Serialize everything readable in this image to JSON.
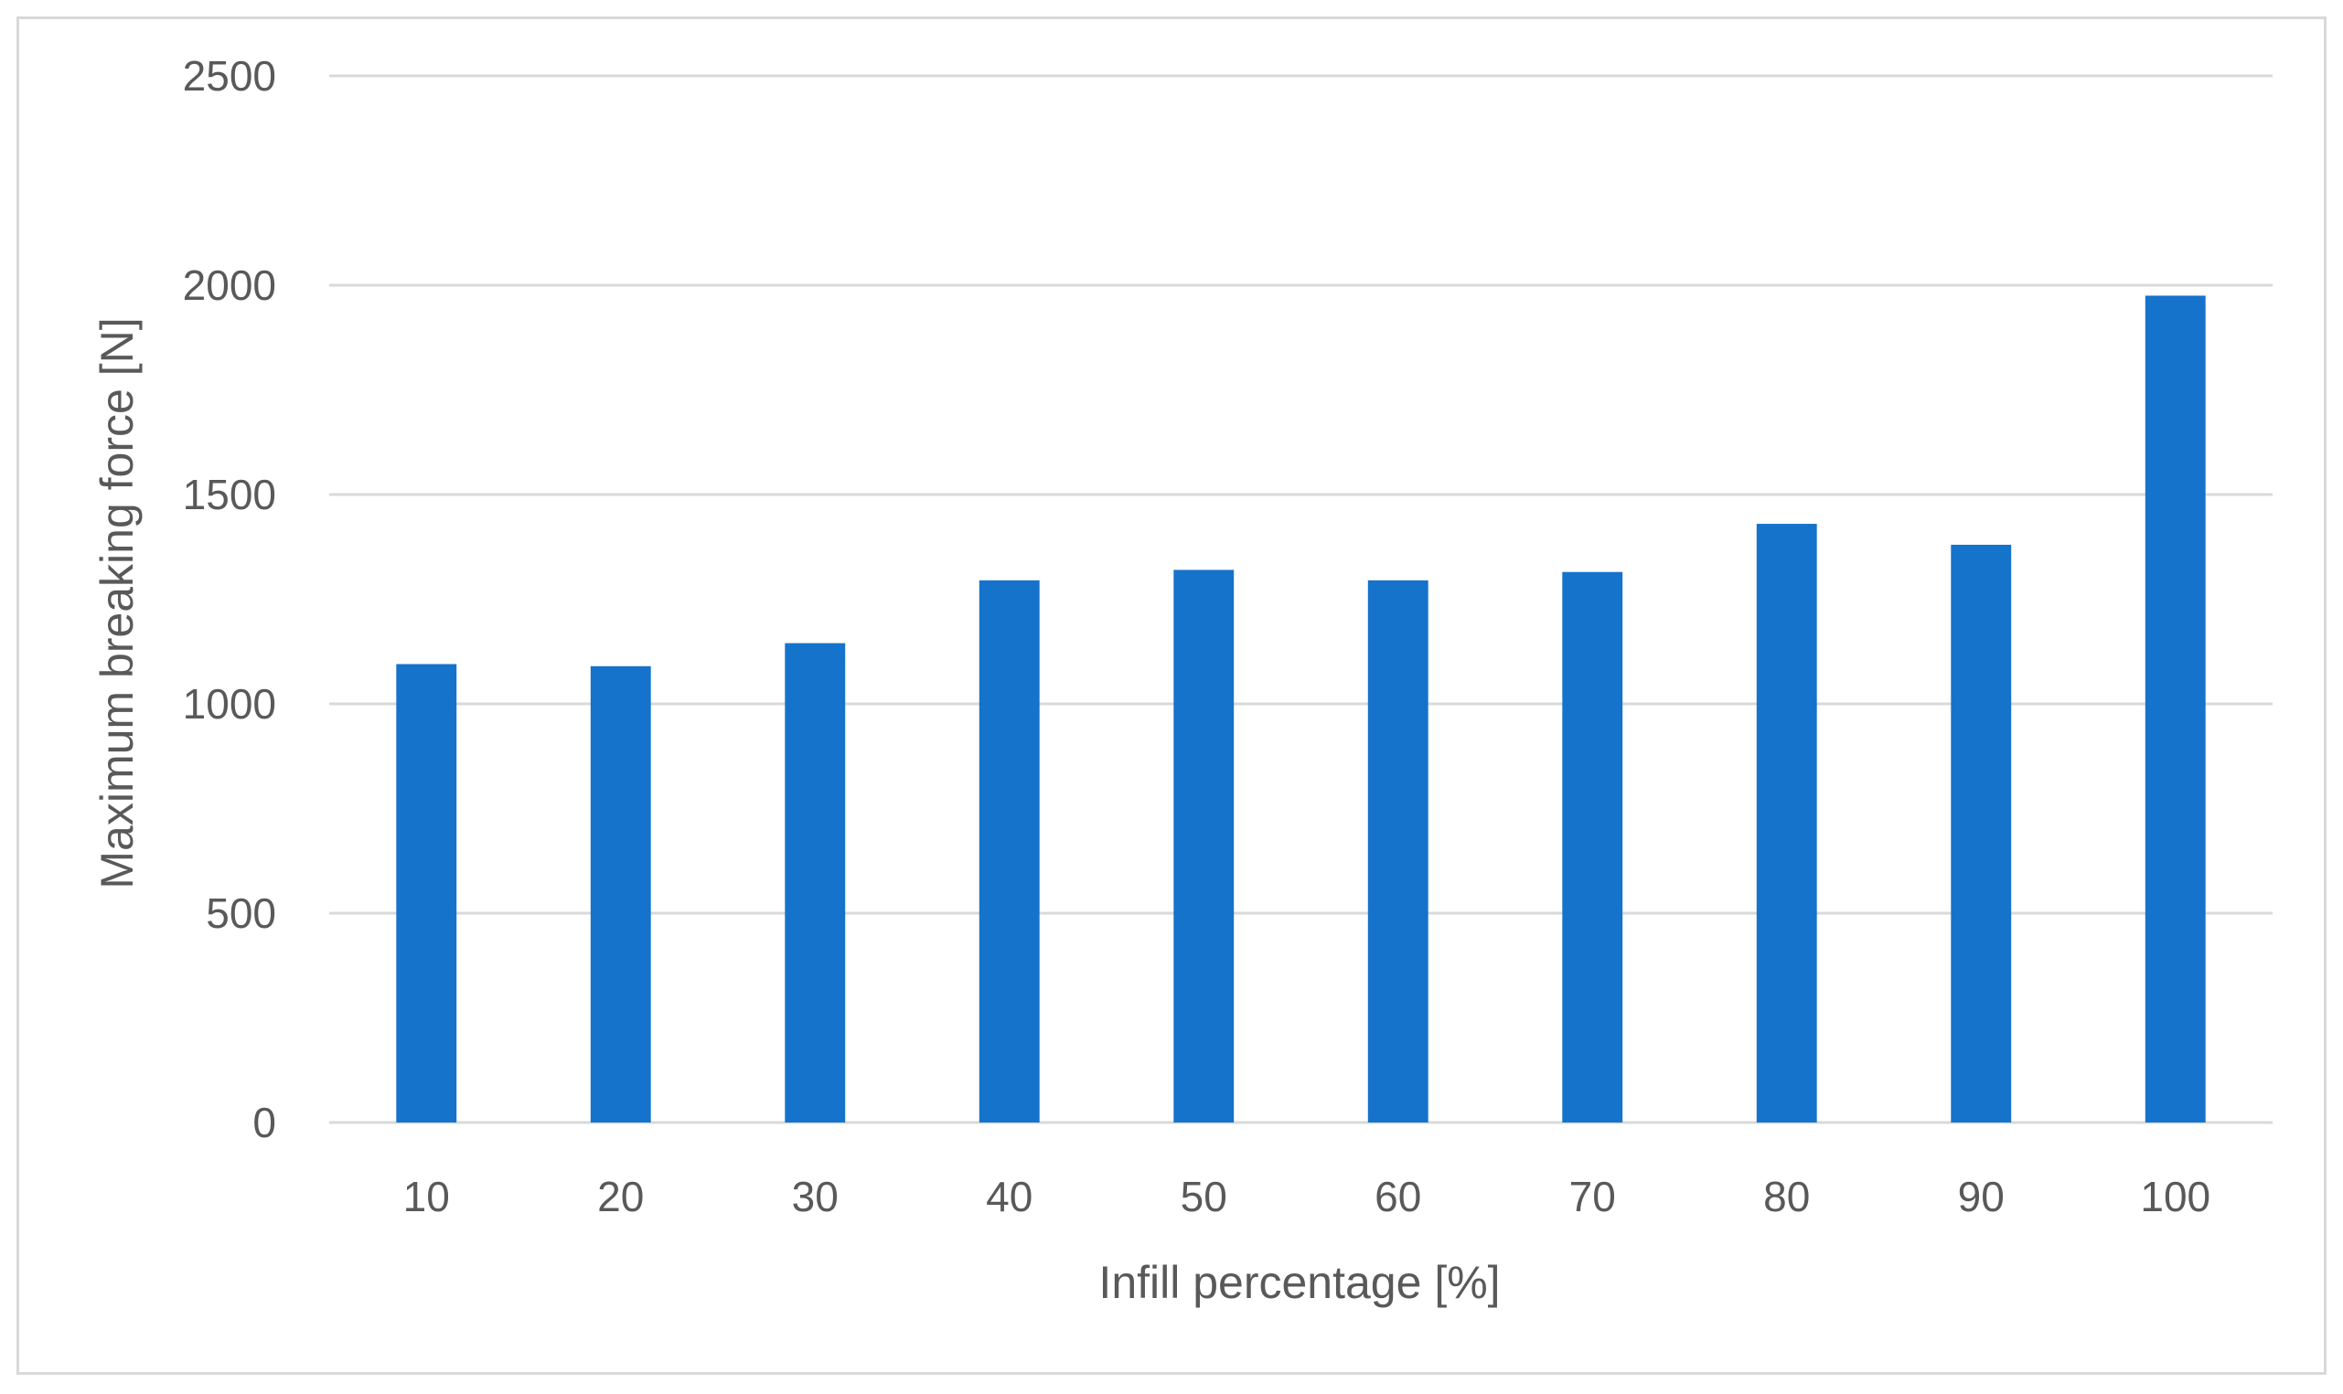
{
  "chart_data": {
    "type": "bar",
    "categories": [
      "10",
      "20",
      "30",
      "40",
      "50",
      "60",
      "70",
      "80",
      "90",
      "100"
    ],
    "series": [
      {
        "values": [
          1095,
          1090,
          1145,
          1295,
          1320,
          1295,
          1315,
          1430,
          1380,
          1975
        ]
      }
    ],
    "xlabel": "Infill percentage [%]",
    "ylabel": "Maximum breaking force  [N]",
    "ylim": [
      0,
      2500
    ],
    "yticks": [
      "0",
      "500",
      "1000",
      "1500",
      "2000",
      "2500"
    ],
    "grid": true,
    "legend": "none",
    "bar_color": "#1573CB",
    "grid_color": "#D9D9D9",
    "text_color": "#595959"
  }
}
